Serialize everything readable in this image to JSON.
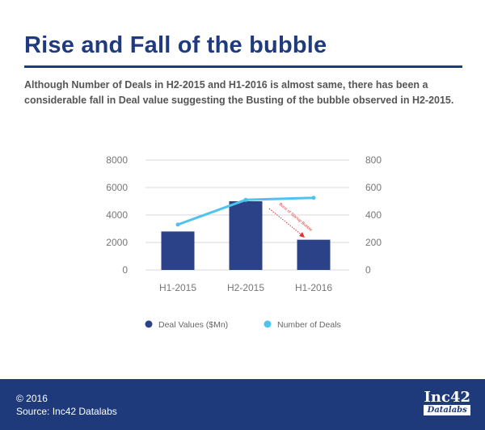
{
  "title": "Rise and Fall of the bubble",
  "description": "Although Number of Deals in H2-2015 and H1-2016 is almost same, there has been a considerable fall in Deal value suggesting the Busting of the bubble observed in H2-2015.",
  "chart_data": {
    "type": "bar",
    "categories": [
      "H1-2015",
      "H2-2015",
      "H1-2016"
    ],
    "series": [
      {
        "name": "Deal Values ($Mn)",
        "type": "bar",
        "axis": "left",
        "values": [
          2800,
          5000,
          2200
        ],
        "color": "#2b4288"
      },
      {
        "name": "Number of Deals",
        "type": "line",
        "axis": "right",
        "values": [
          330,
          510,
          525
        ],
        "color": "#4fc3f0"
      }
    ],
    "y_left": {
      "ticks": [
        "0",
        "2000",
        "4000",
        "6000",
        "8000"
      ],
      "range": [
        0,
        8000
      ]
    },
    "y_right": {
      "ticks": [
        "0",
        "200",
        "400",
        "600",
        "800"
      ],
      "range": [
        0,
        800
      ]
    },
    "annotation": "Burst of Startup Bubble",
    "annotation_color": "#e03030",
    "legend_placement": "bottom",
    "grid": true
  },
  "footer": {
    "copyright": "© 2016",
    "source": "Source: Inc42 Datalabs",
    "logo_top": "Inc42",
    "logo_bottom": "Datalabs"
  }
}
